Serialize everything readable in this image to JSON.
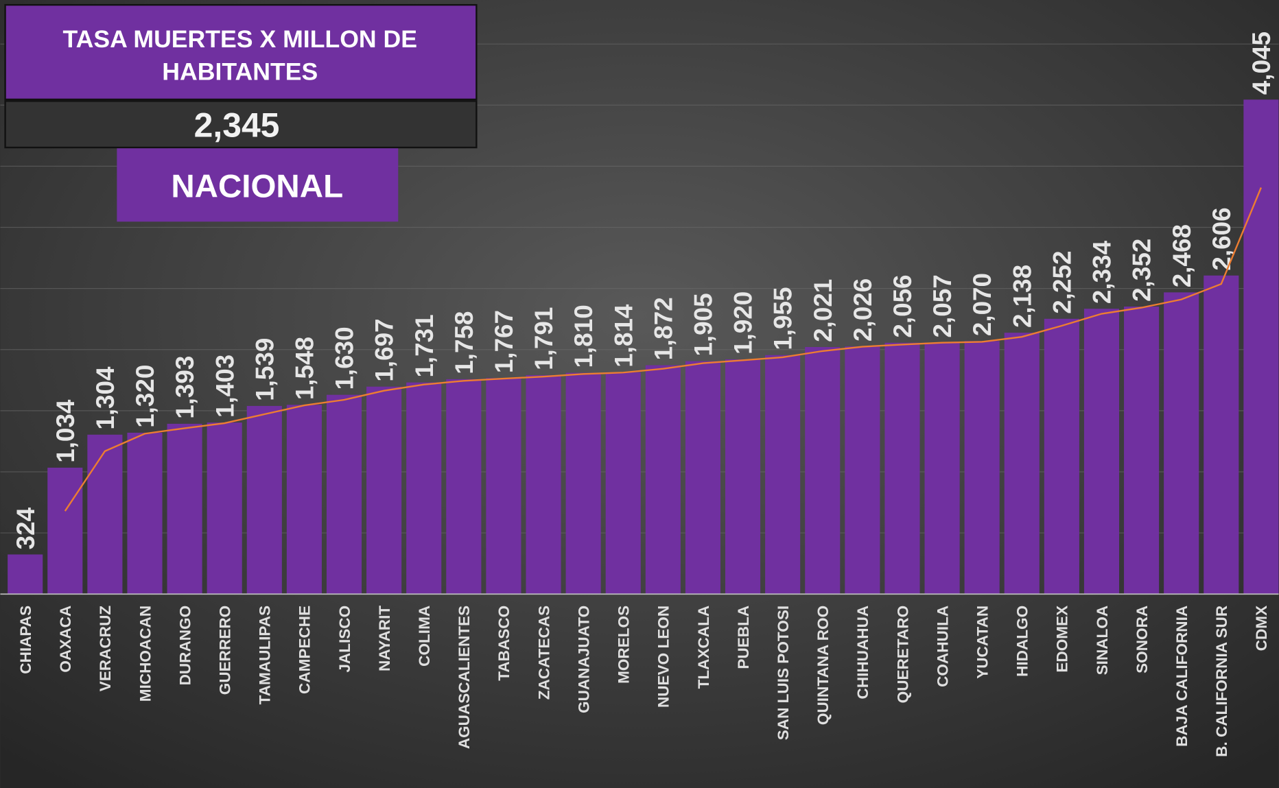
{
  "chart_data": {
    "type": "bar",
    "title": [
      "TASA MUERTES X MILLON DE",
      "HABITANTES"
    ],
    "national_rate": "2,345",
    "national_label": "NACIONAL",
    "categories": [
      "CHIAPAS",
      "OAXACA",
      "VERACRUZ",
      "MICHOACAN",
      "DURANGO",
      "GUERRERO",
      "TAMAULIPAS",
      "CAMPECHE",
      "JALISCO",
      "NAYARIT",
      "COLIMA",
      "AGUASCALIENTES",
      "TABASCO",
      "ZACATECAS",
      "GUANAJUATO",
      "MORELOS",
      "NUEVO LEON",
      "TLAXCALA",
      "PUEBLA",
      "SAN LUIS POTOSI",
      "QUINTANA ROO",
      "CHIHUAHUA",
      "QUERETARO",
      "COAHUILA",
      "YUCATAN",
      "HIDALGO",
      "EDOMEX",
      "SINALOA",
      "SONORA",
      "BAJA CALIFORNIA",
      "B. CALIFORNIA SUR",
      "CDMX"
    ],
    "values": [
      324,
      1034,
      1304,
      1320,
      1393,
      1403,
      1539,
      1548,
      1630,
      1697,
      1731,
      1758,
      1767,
      1791,
      1810,
      1814,
      1872,
      1905,
      1920,
      1955,
      2021,
      2026,
      2056,
      2057,
      2070,
      2138,
      2252,
      2334,
      2352,
      2468,
      2606,
      4045
    ],
    "value_labels": [
      "324",
      "1,034",
      "1,304",
      "1,320",
      "1,393",
      "1,403",
      "1,539",
      "1,548",
      "1,630",
      "1,697",
      "1,731",
      "1,758",
      "1,767",
      "1,791",
      "1,810",
      "1,814",
      "1,872",
      "1,905",
      "1,920",
      "1,955",
      "2,021",
      "2,026",
      "2,056",
      "2,057",
      "2,070",
      "2,138",
      "2,252",
      "2,334",
      "2,352",
      "2,468",
      "2,606",
      "4,045"
    ],
    "color": "#7030a0",
    "trend_line": {
      "color": "#ed7d31",
      "values": [
        null,
        679,
        1169,
        1312,
        1356.5,
        1398,
        1471,
        1543.5,
        1589,
        1663.5,
        1714,
        1744.5,
        1762.5,
        1779,
        1800.5,
        1812,
        1843,
        1888.5,
        1912.5,
        1937.5,
        1988,
        2023.5,
        2041,
        2056.5,
        2063.5,
        2104,
        2195,
        2293,
        2343,
        2410,
        2537,
        3325.5
      ]
    },
    "ylim": [
      0,
      4860
    ],
    "yticks": [
      0,
      500,
      1000,
      1500,
      2000,
      2500,
      3000,
      3500,
      4000,
      4500
    ],
    "grid": true
  }
}
